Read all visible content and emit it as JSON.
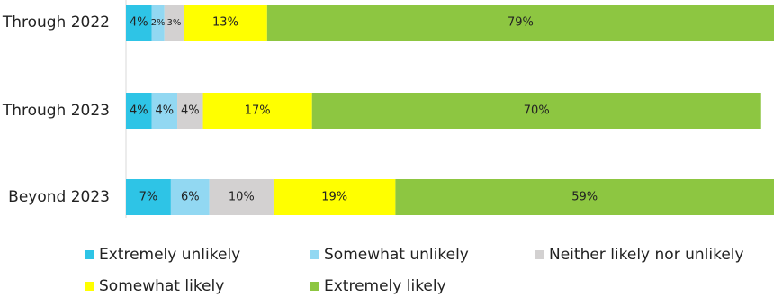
{
  "chart_data": {
    "type": "stacked-bar-horizontal",
    "categories": [
      "Through 2022",
      "Through 2023",
      "Beyond 2023"
    ],
    "series": [
      {
        "name": "Extremely unlikely",
        "color": "#2ec4e6",
        "values": [
          4,
          4,
          7
        ],
        "value_labels": [
          "4%",
          "4%",
          "7%"
        ]
      },
      {
        "name": "Somewhat unlikely",
        "color": "#92d8f2",
        "values": [
          2,
          4,
          6
        ],
        "value_labels": [
          "2%",
          "4%",
          "6%"
        ]
      },
      {
        "name": "Neither likely nor unlikely",
        "color": "#d3d1d1",
        "values": [
          3,
          4,
          10
        ],
        "value_labels": [
          "3%",
          "4%",
          "10%"
        ]
      },
      {
        "name": "Somewhat likely",
        "color": "#ffff00",
        "values": [
          13,
          17,
          19
        ],
        "value_labels": [
          "13%",
          "17%",
          "19%"
        ]
      },
      {
        "name": "Extremely likely",
        "color": "#8dc641",
        "values": [
          79,
          70,
          59
        ],
        "value_labels": [
          "79%",
          "70%",
          "59%"
        ]
      }
    ]
  }
}
